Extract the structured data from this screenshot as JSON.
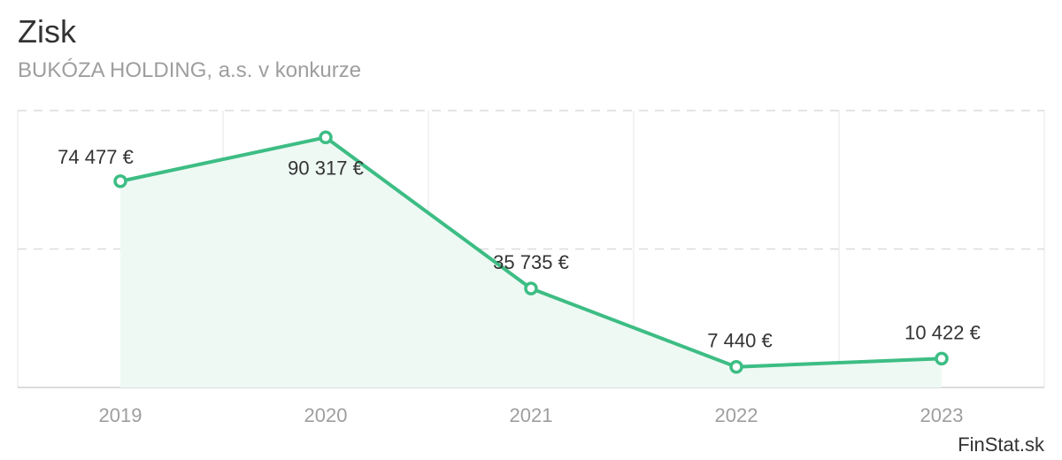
{
  "header": {
    "title": "Zisk",
    "subtitle": "BUKÓZA HOLDING, a.s. v konkurze"
  },
  "watermark": "FinStat.sk",
  "colors": {
    "line": "#3dbd84",
    "area": "#eef9f4",
    "grid": "#dcdcdc",
    "tick": "#9e9e9e",
    "label": "#333333"
  },
  "chart_data": {
    "type": "area",
    "categories": [
      "2019",
      "2020",
      "2021",
      "2022",
      "2023"
    ],
    "series": [
      {
        "values": [
          74477,
          90317,
          35735,
          7440,
          10422
        ],
        "labels": [
          "74 477 €",
          "90 317 €",
          "35 735 €",
          "7 440 €",
          "10 422 €"
        ]
      }
    ],
    "ylim": [
      0,
      100000
    ],
    "grid": true,
    "legend": "none"
  }
}
